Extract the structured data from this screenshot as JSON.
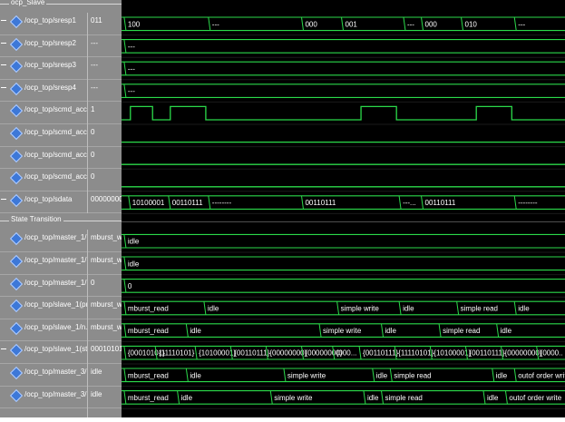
{
  "groups": {
    "top_label": "ocp_Slave",
    "state_transition": "State Transition"
  },
  "signals": [
    {
      "name": "/ocp_top/sresp1",
      "value": "011",
      "type": "bus",
      "labels": [
        {
          "t": "100",
          "x": 0.01
        },
        {
          "t": "---",
          "x": 0.2
        },
        {
          "t": "000",
          "x": 0.41
        },
        {
          "t": "001",
          "x": 0.5
        },
        {
          "t": "---",
          "x": 0.64
        },
        {
          "t": "000",
          "x": 0.68
        },
        {
          "t": "010",
          "x": 0.77
        },
        {
          "t": "---",
          "x": 0.89
        }
      ]
    },
    {
      "name": "/ocp_top/sresp2",
      "value": "---",
      "type": "bus",
      "labels": [
        {
          "t": "---",
          "x": 0.01
        }
      ]
    },
    {
      "name": "/ocp_top/sresp3",
      "value": "---",
      "type": "bus",
      "labels": [
        {
          "t": "---",
          "x": 0.01
        }
      ]
    },
    {
      "name": "/ocp_top/sresp4",
      "value": "---",
      "type": "bus",
      "labels": [
        {
          "t": "---",
          "x": 0.01
        }
      ]
    },
    {
      "name": "/ocp_top/scmd_acc...",
      "value": "1",
      "type": "clock",
      "pulses": [
        [
          0.02,
          0.07
        ],
        [
          0.11,
          0.19
        ],
        [
          0.54,
          0.62
        ],
        [
          0.8,
          0.88
        ]
      ]
    },
    {
      "name": "/ocp_top/scmd_acc...",
      "value": "0",
      "type": "flat"
    },
    {
      "name": "/ocp_top/scmd_acc...",
      "value": "0",
      "type": "flat"
    },
    {
      "name": "/ocp_top/scmd_acc...",
      "value": "0",
      "type": "flat"
    },
    {
      "name": "/ocp_top/sdata",
      "value": "00000000",
      "type": "bus",
      "labels": [
        {
          "t": "10100001",
          "x": 0.02
        },
        {
          "t": "00110111",
          "x": 0.11
        },
        {
          "t": "--------",
          "x": 0.2
        },
        {
          "t": "00110111",
          "x": 0.41
        },
        {
          "t": "---...",
          "x": 0.63
        },
        {
          "t": "00110111",
          "x": 0.68
        },
        {
          "t": "--------",
          "x": 0.89
        }
      ]
    },
    {
      "name": "/ocp_top/master_1/...",
      "value": "mburst_wri",
      "type": "bus",
      "labels": [
        {
          "t": "idle",
          "x": 0.01
        }
      ]
    },
    {
      "name": "/ocp_top/master_1/...",
      "value": "mburst_wri",
      "type": "bus",
      "labels": [
        {
          "t": "idle",
          "x": 0.01
        }
      ]
    },
    {
      "name": "/ocp_top/master_1/...",
      "value": "0",
      "type": "bus",
      "labels": [
        {
          "t": "0",
          "x": 0.01
        }
      ]
    },
    {
      "name": "/ocp_top/slave_1(pr...",
      "value": "mburst_wri",
      "type": "bus",
      "labels": [
        {
          "t": "mburst_read",
          "x": 0.01
        },
        {
          "t": "idle",
          "x": 0.19
        },
        {
          "t": "simple write",
          "x": 0.49
        },
        {
          "t": "idle",
          "x": 0.63
        },
        {
          "t": "simple read",
          "x": 0.76
        },
        {
          "t": "idle",
          "x": 0.89
        }
      ]
    },
    {
      "name": "/ocp_top/slave_1/n...",
      "value": "mburst_wri",
      "type": "bus",
      "labels": [
        {
          "t": "mburst_read",
          "x": 0.01
        },
        {
          "t": "idle",
          "x": 0.15
        },
        {
          "t": "simple write",
          "x": 0.45
        },
        {
          "t": "idle",
          "x": 0.59
        },
        {
          "t": "simple read",
          "x": 0.72
        },
        {
          "t": "idle",
          "x": 0.85
        }
      ]
    },
    {
      "name": "/ocp_top/slave_1(st...",
      "value": "00010101",
      "type": "bus",
      "labels": [
        {
          "t": "{00010101}",
          "x": 0.01
        },
        {
          "t": "{11110101}",
          "x": 0.08
        },
        {
          "t": "{10100001}",
          "x": 0.17
        },
        {
          "t": "{00110111}",
          "x": 0.25
        },
        {
          "t": "{00000000}",
          "x": 0.33
        },
        {
          "t": "{00000000}",
          "x": 0.41
        },
        {
          "t": "{000...",
          "x": 0.48
        },
        {
          "t": "{00110111}",
          "x": 0.54
        },
        {
          "t": "{11110101}",
          "x": 0.62
        },
        {
          "t": "{10100001}",
          "x": 0.7
        },
        {
          "t": "{00110111}",
          "x": 0.78
        },
        {
          "t": "{00000000}",
          "x": 0.86
        },
        {
          "t": "{0000..",
          "x": 0.94
        }
      ]
    },
    {
      "name": "/ocp_top/master_3/...",
      "value": "idle",
      "type": "bus",
      "labels": [
        {
          "t": "mburst_read",
          "x": 0.01
        },
        {
          "t": "idle",
          "x": 0.15
        },
        {
          "t": "simple write",
          "x": 0.37
        },
        {
          "t": "idle",
          "x": 0.57
        },
        {
          "t": "simple read",
          "x": 0.61
        },
        {
          "t": "idle",
          "x": 0.84
        },
        {
          "t": "outof order write",
          "x": 0.89
        }
      ]
    },
    {
      "name": "/ocp_top/master_3/...",
      "value": "idle",
      "type": "bus",
      "labels": [
        {
          "t": "mburst_read",
          "x": 0.01
        },
        {
          "t": "idle",
          "x": 0.13
        },
        {
          "t": "simple write",
          "x": 0.34
        },
        {
          "t": "idle",
          "x": 0.55
        },
        {
          "t": "simple read",
          "x": 0.59
        },
        {
          "t": "idle",
          "x": 0.82
        },
        {
          "t": "outof order write",
          "x": 0.87
        }
      ]
    }
  ]
}
